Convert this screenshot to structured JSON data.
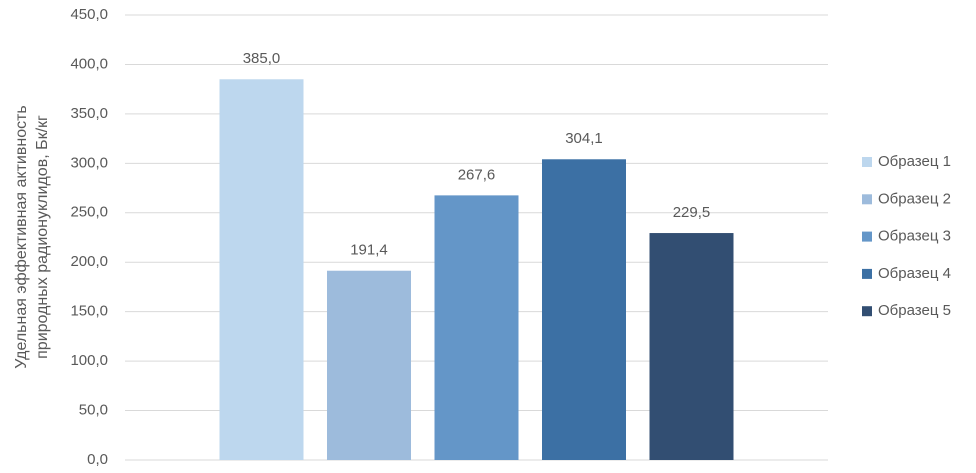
{
  "chart_data": {
    "type": "bar",
    "ylabel": [
      "Удельная эффективная активность",
      "природных радионуклидов, Бк/кг"
    ],
    "categories": [
      null
    ],
    "series": [
      {
        "name": "Образец 1",
        "color": "#bdd7ee",
        "values": [
          385.0
        ],
        "value_labels": [
          "385,0"
        ]
      },
      {
        "name": "Образец 2",
        "color": "#9dbbdc",
        "values": [
          191.4
        ],
        "value_labels": [
          "191,4"
        ]
      },
      {
        "name": "Образец 3",
        "color": "#6496c8",
        "values": [
          267.6
        ],
        "value_labels": [
          "267,6"
        ]
      },
      {
        "name": "Образец 4",
        "color": "#3c70a4",
        "values": [
          304.1
        ],
        "value_labels": [
          "304,1"
        ]
      },
      {
        "name": "Образец 5",
        "color": "#324e72",
        "values": [
          229.5
        ],
        "value_labels": [
          "229,5"
        ]
      }
    ],
    "ylim": [
      0,
      450
    ],
    "yticks": [
      {
        "value": 0,
        "label": "0,0"
      },
      {
        "value": 50,
        "label": "50,0"
      },
      {
        "value": 100,
        "label": "100,0"
      },
      {
        "value": 150,
        "label": "150,0"
      },
      {
        "value": 200,
        "label": "200,0"
      },
      {
        "value": 250,
        "label": "250,0"
      },
      {
        "value": 300,
        "label": "300,0"
      },
      {
        "value": 350,
        "label": "350,0"
      },
      {
        "value": 400,
        "label": "400,0"
      },
      {
        "value": 450,
        "label": "450,0"
      }
    ],
    "grid": true,
    "legend": "right"
  }
}
